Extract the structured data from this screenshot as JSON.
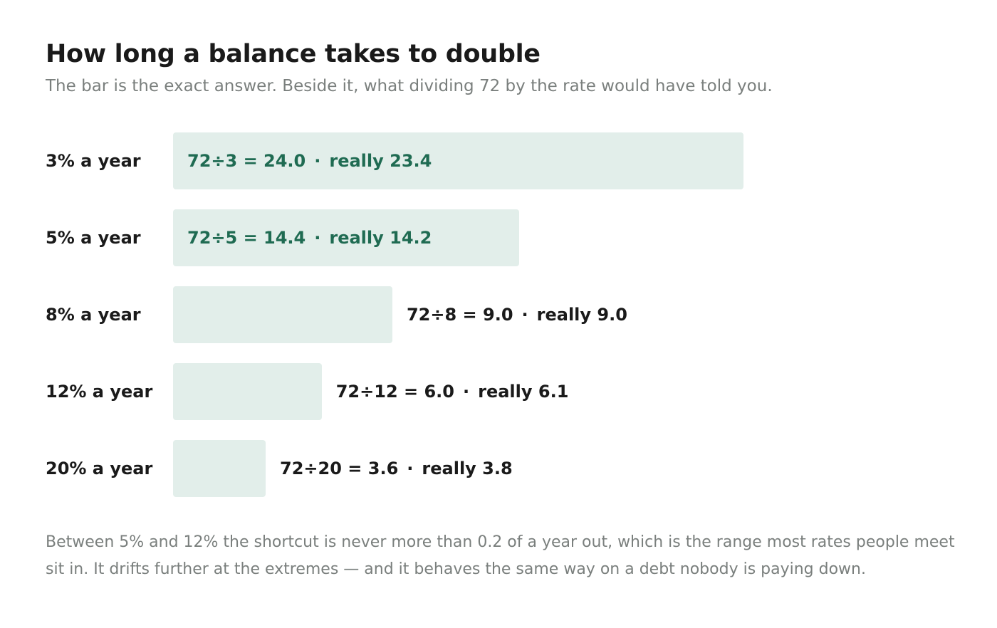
{
  "title": "How long a balance takes to double",
  "subtitle": "The bar is the exact answer. Beside it, what dividing 72 by the rate would have told you.",
  "footnote": "Between 5% and 12% the shortcut is never more than 0.2 of a year out, which is the range most rates people meet sit in. It drifts further at the extremes — and it behaves the same way on a debt nobody is paying down.",
  "colors": {
    "bar": "#e2eeea",
    "inside_text": "#1f6b52",
    "outside_text": "#1a1a1a",
    "muted_text": "#7a7f7d"
  },
  "chart_data": {
    "type": "bar",
    "orientation": "horizontal",
    "title": "How long a balance takes to double",
    "categories": [
      "3% a year",
      "5% a year",
      "8% a year",
      "12% a year",
      "20% a year"
    ],
    "values": [
      23.4,
      14.2,
      9.0,
      6.1,
      3.8
    ],
    "xlim": [
      0,
      28
    ],
    "grid": false,
    "annotations": [
      {
        "rule": "72÷3 = 24.0",
        "actual": "really 23.4"
      },
      {
        "rule": "72÷5 = 14.4",
        "actual": "really 14.2"
      },
      {
        "rule": "72÷8 = 9.0",
        "actual": "really 9.0"
      },
      {
        "rule": "72÷12 = 6.0",
        "actual": "really 6.1"
      },
      {
        "rule": "72÷20 = 3.6",
        "actual": "really 3.8"
      }
    ]
  }
}
